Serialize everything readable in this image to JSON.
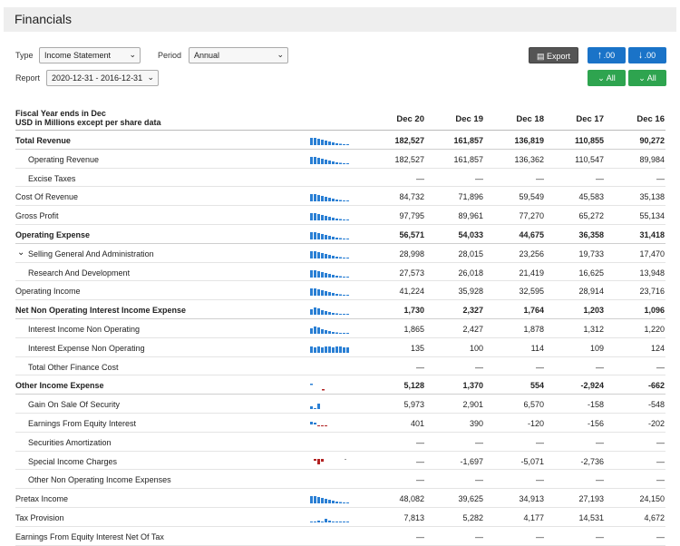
{
  "header": {
    "title": "Financials"
  },
  "controls": {
    "type_label": "Type",
    "type_value": "Income Statement",
    "period_label": "Period",
    "period_value": "Annual",
    "report_label": "Report",
    "report_value": "2020-12-31 - 2016-12-31",
    "export_label": "Export",
    "dec_up_label": ".00",
    "dec_down_label": ".00",
    "expand_all_label": "All",
    "collapse_all_label": "All"
  },
  "table": {
    "fiscal_line1": "Fiscal Year ends in Dec",
    "fiscal_line2": "USD in Millions except per share data",
    "years": [
      "Dec 20",
      "Dec 19",
      "Dec 18",
      "Dec 17",
      "Dec 16"
    ],
    "rows": [
      {
        "label": "Total Revenue",
        "bold": true,
        "indent": 0,
        "spark": "up",
        "values": [
          "182,527",
          "161,857",
          "136,819",
          "110,855",
          "90,272"
        ]
      },
      {
        "label": "Operating Revenue",
        "bold": false,
        "indent": 1,
        "spark": "up",
        "values": [
          "182,527",
          "161,857",
          "136,362",
          "110,547",
          "89,984"
        ]
      },
      {
        "label": "Excise Taxes",
        "bold": false,
        "indent": 1,
        "spark": "none",
        "values": [
          "—",
          "—",
          "—",
          "—",
          "—"
        ]
      },
      {
        "label": "Cost Of Revenue",
        "bold": false,
        "indent": 0,
        "spark": "up",
        "values": [
          "84,732",
          "71,896",
          "59,549",
          "45,583",
          "35,138"
        ]
      },
      {
        "label": "Gross Profit",
        "bold": false,
        "indent": 0,
        "spark": "up",
        "values": [
          "97,795",
          "89,961",
          "77,270",
          "65,272",
          "55,134"
        ]
      },
      {
        "label": "Operating Expense",
        "bold": true,
        "indent": 0,
        "spark": "up",
        "values": [
          "56,571",
          "54,033",
          "44,675",
          "36,358",
          "31,418"
        ]
      },
      {
        "label": "Selling General And Administration",
        "bold": false,
        "indent": 1,
        "caret": true,
        "spark": "up",
        "values": [
          "28,998",
          "28,015",
          "23,256",
          "19,733",
          "17,470"
        ]
      },
      {
        "label": "Research And Development",
        "bold": false,
        "indent": 1,
        "spark": "up",
        "values": [
          "27,573",
          "26,018",
          "21,419",
          "16,625",
          "13,948"
        ]
      },
      {
        "label": "Operating Income",
        "bold": false,
        "indent": 0,
        "spark": "up",
        "values": [
          "41,224",
          "35,928",
          "32,595",
          "28,914",
          "23,716"
        ]
      },
      {
        "label": "Net Non Operating Interest Income Expense",
        "bold": true,
        "indent": 0,
        "spark": "mixed",
        "values": [
          "1,730",
          "2,327",
          "1,764",
          "1,203",
          "1,096"
        ]
      },
      {
        "label": "Interest Income Non Operating",
        "bold": false,
        "indent": 1,
        "spark": "mixed",
        "values": [
          "1,865",
          "2,427",
          "1,878",
          "1,312",
          "1,220"
        ]
      },
      {
        "label": "Interest Expense Non Operating",
        "bold": false,
        "indent": 1,
        "spark": "flat",
        "values": [
          "135",
          "100",
          "114",
          "109",
          "124"
        ]
      },
      {
        "label": "Total Other Finance Cost",
        "bold": false,
        "indent": 1,
        "spark": "none",
        "values": [
          "—",
          "—",
          "—",
          "—",
          "—"
        ]
      },
      {
        "label": "Other Income Expense",
        "bold": true,
        "indent": 0,
        "spark": "neg1",
        "values": [
          "5,128",
          "1,370",
          "554",
          "-2,924",
          "-662"
        ]
      },
      {
        "label": "Gain On Sale Of Security",
        "bold": false,
        "indent": 1,
        "spark": "gain",
        "values": [
          "5,973",
          "2,901",
          "6,570",
          "-158",
          "-548"
        ]
      },
      {
        "label": "Earnings From Equity Interest",
        "bold": false,
        "indent": 1,
        "spark": "neg2",
        "values": [
          "401",
          "390",
          "-120",
          "-156",
          "-202"
        ]
      },
      {
        "label": "Securities Amortization",
        "bold": false,
        "indent": 1,
        "spark": "none",
        "values": [
          "—",
          "—",
          "—",
          "—",
          "—"
        ]
      },
      {
        "label": "Special Income Charges",
        "bold": false,
        "indent": 1,
        "spark": "special",
        "values": [
          "—",
          "-1,697",
          "-5,071",
          "-2,736",
          "—"
        ]
      },
      {
        "label": "Other Non Operating Income Expenses",
        "bold": false,
        "indent": 1,
        "spark": "none",
        "values": [
          "—",
          "—",
          "—",
          "—",
          "—"
        ]
      },
      {
        "label": "Pretax Income",
        "bold": false,
        "indent": 0,
        "spark": "up",
        "values": [
          "48,082",
          "39,625",
          "34,913",
          "27,193",
          "24,150"
        ]
      },
      {
        "label": "Tax Provision",
        "bold": false,
        "indent": 0,
        "spark": "tax",
        "values": [
          "7,813",
          "5,282",
          "4,177",
          "14,531",
          "4,672"
        ]
      },
      {
        "label": "Earnings From Equity Interest Net Of Tax",
        "bold": false,
        "indent": 0,
        "spark": "none",
        "values": [
          "—",
          "—",
          "—",
          "—",
          "—"
        ]
      }
    ]
  },
  "colors": {
    "bar": "#2a7fd4",
    "neg": "#b22222",
    "grid": "#e4e4e4"
  }
}
